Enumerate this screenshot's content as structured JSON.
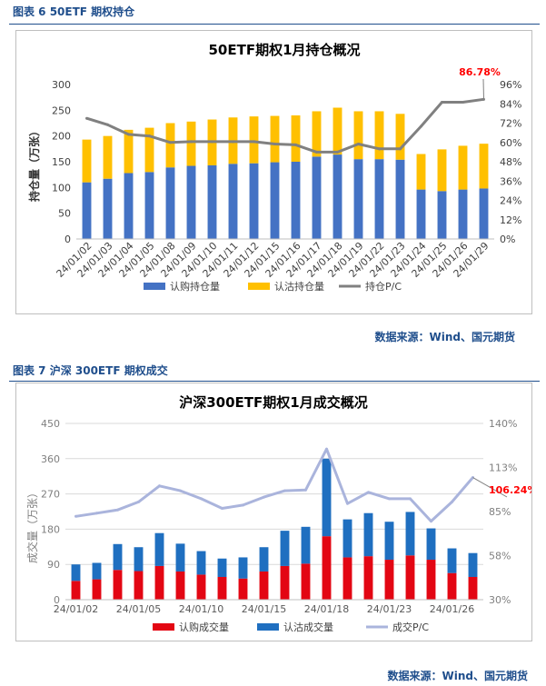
{
  "figure6": {
    "heading": "图表 6 50ETF 期权持仓",
    "source": "数据来源：Wind、国元期货",
    "chart_data": {
      "type": "bar",
      "stacked": true,
      "title": "50ETF期权1月持仓概况",
      "ylabel": "持仓量（万张）",
      "y2label": "",
      "ylim": [
        0,
        300
      ],
      "y2lim": [
        0,
        96
      ],
      "yticks": [
        "0",
        "50",
        "100",
        "150",
        "200",
        "250",
        "300"
      ],
      "y2ticks": [
        "0%",
        "12%",
        "24%",
        "36%",
        "48%",
        "60%",
        "72%",
        "84%",
        "96%"
      ],
      "categories": [
        "24/01/02",
        "24/01/03",
        "24/01/04",
        "24/01/05",
        "24/01/08",
        "24/01/09",
        "24/01/10",
        "24/01/11",
        "24/01/12",
        "24/01/15",
        "24/01/16",
        "24/01/17",
        "24/01/18",
        "24/01/19",
        "24/01/22",
        "24/01/23",
        "24/01/24",
        "24/01/25",
        "24/01/26",
        "24/01/29"
      ],
      "series": [
        {
          "name": "认购持仓量",
          "color": "#4472c4",
          "values": [
            110,
            117,
            128,
            130,
            139,
            142,
            143,
            146,
            147,
            149,
            150,
            160,
            164,
            155,
            155,
            154,
            96,
            93,
            96,
            98
          ]
        },
        {
          "name": "认沽持仓量",
          "color": "#ffc000",
          "values": [
            83,
            83,
            84,
            86,
            86,
            86,
            89,
            90,
            91,
            90,
            90,
            88,
            91,
            93,
            93,
            89,
            69,
            81,
            85,
            87
          ]
        }
      ],
      "line": {
        "name": "持仓P/C",
        "color": "#808080",
        "values": [
          75,
          71,
          65,
          64,
          60,
          60.5,
          60.5,
          60.5,
          60.5,
          59,
          58.5,
          54,
          54,
          59,
          56,
          56,
          70,
          85,
          85,
          86.78
        ]
      },
      "annotation": "86.78%",
      "annotation_color": "#ff0000"
    }
  },
  "figure7": {
    "heading": "图表 7 沪深 300ETF 期权成交",
    "source": "数据来源：Wind、国元期货",
    "chart_data": {
      "type": "bar",
      "stacked": true,
      "title": "沪深300ETF期权1月成交概况",
      "ylabel": "成交量（万张）",
      "ylim": [
        0,
        450
      ],
      "y2lim": [
        30,
        140
      ],
      "yticks": [
        "0",
        "90",
        "180",
        "270",
        "360",
        "450"
      ],
      "y2ticks": [
        "30%",
        "58%",
        "85%",
        "113%",
        "140%"
      ],
      "categories": [
        "24/01/02",
        "24/01/03",
        "24/01/04",
        "24/01/05",
        "24/01/08",
        "24/01/09",
        "24/01/10",
        "24/01/11",
        "24/01/12",
        "24/01/15",
        "24/01/16",
        "24/01/17",
        "24/01/18",
        "24/01/19",
        "24/01/22",
        "24/01/23",
        "24/01/24",
        "24/01/25",
        "24/01/26",
        "24/01/29"
      ],
      "xtick_labels": [
        "24/01/02",
        "24/01/05",
        "24/01/10",
        "24/01/15",
        "24/01/18",
        "24/01/23",
        "24/01/26"
      ],
      "series": [
        {
          "name": "认购成交量",
          "color": "#e30613",
          "values": [
            48,
            52,
            76,
            73,
            86,
            72,
            64,
            58,
            54,
            72,
            86,
            92,
            162,
            108,
            111,
            102,
            113,
            102,
            68,
            58
          ]
        },
        {
          "name": "认沽成交量",
          "color": "#1f6fc0",
          "values": [
            42,
            42,
            66,
            61,
            84,
            71,
            60,
            47,
            54,
            62,
            90,
            94,
            198,
            97,
            110,
            97,
            111,
            80,
            63,
            61
          ]
        }
      ],
      "line": {
        "name": "成交P/C",
        "color": "#aab4dc",
        "values": [
          82,
          84,
          86,
          91,
          101,
          98,
          93,
          87,
          89,
          94,
          98,
          98.5,
          124,
          90,
          97,
          93,
          93,
          79,
          91,
          106.24
        ]
      },
      "annotation": "106.24%",
      "annotation_color": "#ff0000"
    }
  }
}
